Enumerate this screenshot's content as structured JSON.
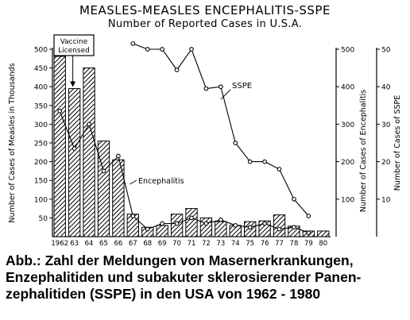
{
  "chart_data": {
    "type": "bar",
    "title": "MEASLES-MEASLES ENCEPHALITIS-SSPE",
    "subtitle": "Number of Reported Cases in U.S.A.",
    "categories": [
      "1962",
      "63",
      "64",
      "65",
      "66",
      "67",
      "68",
      "69",
      "70",
      "71",
      "72",
      "73",
      "74",
      "75",
      "76",
      "77",
      "78",
      "79",
      "80"
    ],
    "y_left": {
      "label": "Number of Cases of Measles in Thousands",
      "ylim": [
        0,
        500
      ],
      "ticks": [
        "500",
        "450",
        "400",
        "350",
        "300",
        "250",
        "200",
        "150",
        "100",
        "50"
      ]
    },
    "y_right1": {
      "label": "Number of Cases of Encephalitis",
      "ylim": [
        0,
        500
      ],
      "ticks": [
        "500",
        "400",
        "300",
        "200",
        "100"
      ]
    },
    "y_right2": {
      "label": "Number of Cases of SSPE",
      "ylim": [
        0,
        50
      ],
      "ticks": [
        "50",
        "40",
        "30",
        "20",
        "10"
      ]
    },
    "series": [
      {
        "type": "bar",
        "axis": "left",
        "values": [
          481,
          395,
          450,
          255,
          205,
          60,
          25,
          30,
          60,
          75,
          50,
          40,
          30,
          40,
          42,
          58,
          28,
          15,
          15
        ]
      },
      {
        "type": "line",
        "name": "Encephalitis",
        "axis": "right1",
        "values": [
          335,
          235,
          300,
          175,
          215,
          55,
          20,
          35,
          35,
          50,
          35,
          45,
          30,
          25,
          35,
          20,
          25,
          10,
          null
        ]
      },
      {
        "type": "line",
        "name": "SSPE",
        "axis": "right2",
        "values": [
          null,
          null,
          null,
          null,
          null,
          51.5,
          50,
          50,
          44.5,
          50,
          39.5,
          40,
          25,
          20,
          20,
          18,
          10,
          5.5,
          null
        ]
      }
    ],
    "annotations": [
      {
        "text": "Vaccine Licensed",
        "category": "63"
      }
    ]
  },
  "caption": {
    "text": "Abb.: Zahl der Meldungen von Masernerkrankungen,\nEnzephalitiden und subakuter sklerosierender Panen-\nzephalitiden (SSPE) in den USA von 1962 - 1980"
  },
  "colors": {
    "ink": "#000000",
    "bar_fill": "#b5b5b5",
    "background": "#ffffff"
  }
}
